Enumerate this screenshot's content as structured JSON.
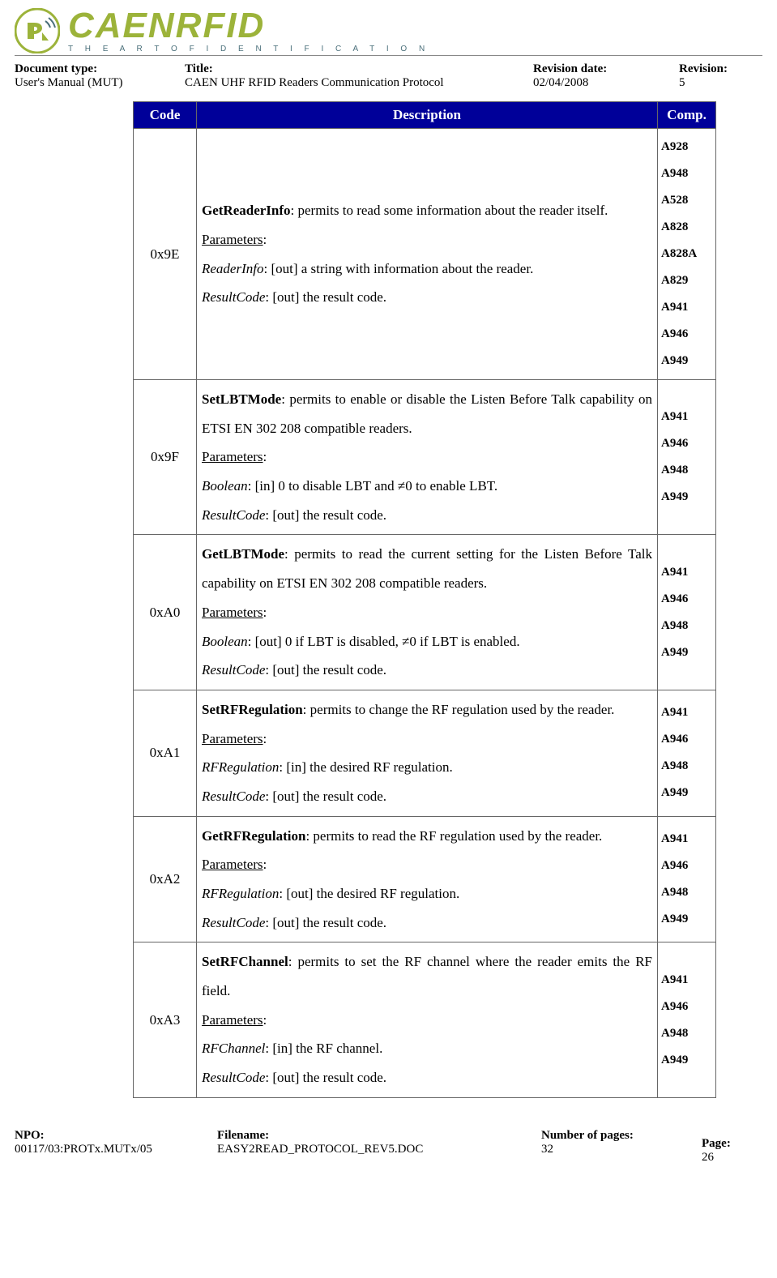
{
  "logo": {
    "main": "CAENRFID",
    "tagline": "T H E   A R T   O F   I D E N T I F I C A T I O N",
    "colors": {
      "green": "#9cb33a",
      "teal": "#4a6f7a",
      "navy": "#000099"
    }
  },
  "header": {
    "doc_type_label": "Document type:",
    "doc_type_value": "User's Manual (MUT)",
    "title_label": "Title:",
    "title_value": "CAEN UHF RFID Readers Communication Protocol",
    "rev_date_label": "Revision date:",
    "rev_date_value": "02/04/2008",
    "rev_label": "Revision:",
    "rev_value": "5"
  },
  "table": {
    "headers": {
      "code": "Code",
      "description": "Description",
      "comp": "Comp."
    },
    "rows": [
      {
        "code": "0x9E",
        "cmd": "GetReaderInfo",
        "summary": ": permits to read some information about the reader itself.",
        "params_label": "Parameters",
        "params": [
          {
            "name": "ReaderInfo",
            "text": ": [out] a string with information about the reader."
          },
          {
            "name": "ResultCode",
            "text": ": [out] the result code."
          }
        ],
        "comp": [
          "A928",
          "A948",
          "A528",
          "A828",
          "A828A",
          "A829",
          "A941",
          "A946",
          "A949"
        ]
      },
      {
        "code": "0x9F",
        "cmd": "SetLBTMode",
        "summary": ": permits to enable or disable the Listen Before Talk capability on ETSI EN 302 208 compatible readers.",
        "params_label": "Parameters",
        "params": [
          {
            "name": "Boolean",
            "text": ": [in] 0 to disable LBT and ≠0 to enable LBT."
          },
          {
            "name": "ResultCode",
            "text": ": [out] the result code."
          }
        ],
        "comp": [
          "A941",
          "A946",
          "A948",
          "A949"
        ]
      },
      {
        "code": "0xA0",
        "cmd": "GetLBTMode",
        "summary": ": permits to read the current setting for the Listen Before Talk capability on ETSI EN 302 208 compatible readers.",
        "params_label": "Parameters",
        "params": [
          {
            "name": "Boolean",
            "text": ": [out] 0 if LBT is disabled, ≠0 if LBT is enabled."
          },
          {
            "name": "ResultCode",
            "text": ": [out] the result code."
          }
        ],
        "comp": [
          "A941",
          "A946",
          "A948",
          "A949"
        ]
      },
      {
        "code": "0xA1",
        "cmd": "SetRFRegulation",
        "summary": ": permits to change the RF regulation used by the reader.",
        "params_label": "Parameters",
        "params": [
          {
            "name": "RFRegulation",
            "text": ": [in] the desired RF regulation."
          },
          {
            "name": "ResultCode",
            "text": ": [out] the result code."
          }
        ],
        "comp": [
          "A941",
          "A946",
          "A948",
          "A949"
        ]
      },
      {
        "code": "0xA2",
        "cmd": "GetRFRegulation",
        "summary": ": permits to read the RF regulation used by the reader.",
        "params_label": "Parameters",
        "params": [
          {
            "name": "RFRegulation",
            "text": ": [out] the desired RF regulation."
          },
          {
            "name": "ResultCode",
            "text": ": [out] the result code."
          }
        ],
        "comp": [
          "A941",
          "A946",
          "A948",
          "A949"
        ]
      },
      {
        "code": "0xA3",
        "cmd": "SetRFChannel",
        "summary": ": permits to set the RF channel where the reader emits the RF field.",
        "params_label": "Parameters",
        "params": [
          {
            "name": "RFChannel",
            "text": ": [in] the RF channel."
          },
          {
            "name": "ResultCode",
            "text": ": [out] the result code."
          }
        ],
        "comp": [
          "A941",
          "A946",
          "A948",
          "A949"
        ]
      }
    ]
  },
  "footer": {
    "npo_label": "NPO:",
    "npo_value": "00117/03:PROTx.MUTx/05",
    "filename_label": "Filename:",
    "filename_value": "EASY2READ_PROTOCOL_REV5.DOC",
    "numpages_label": "Number of pages:",
    "numpages_value": "32",
    "page_label": "Page:",
    "page_value": "26"
  }
}
